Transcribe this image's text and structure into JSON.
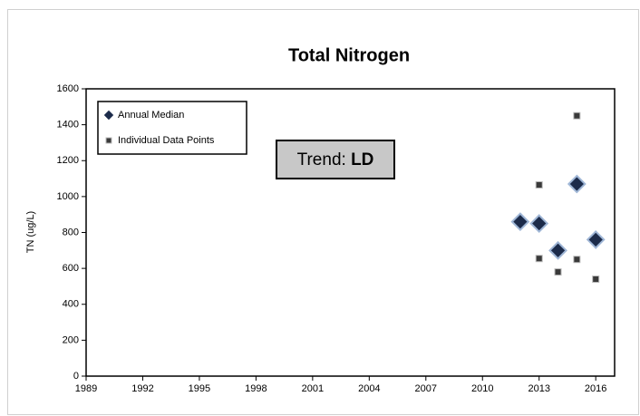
{
  "chart_data": {
    "type": "scatter",
    "title": "Total Nitrogen",
    "y_label": "TN (ug/L)",
    "annotation": {
      "label": "Trend:",
      "value": "LD"
    },
    "legend": "top-left",
    "grid": false,
    "xlim": [
      1989,
      2017
    ],
    "xticks": [
      1989,
      1992,
      1995,
      1998,
      2001,
      2004,
      2007,
      2010,
      2013,
      2016
    ],
    "ylim": [
      0,
      1600
    ],
    "yticks": [
      0,
      200,
      400,
      600,
      800,
      1000,
      1200,
      1400,
      1600
    ],
    "series": [
      {
        "name": "Annual Median",
        "color": "#1c2b4a",
        "marker": "diamond",
        "x": [
          2012,
          2013,
          2014,
          2015,
          2016
        ],
        "values": [
          860,
          850,
          700,
          1070,
          760
        ]
      },
      {
        "name": "Individual Data Points",
        "color": "#3a3a3a",
        "marker": "square",
        "x": [
          2013,
          2013,
          2014,
          2015,
          2015,
          2016
        ],
        "values": [
          1065,
          655,
          580,
          1450,
          650,
          540
        ]
      }
    ]
  }
}
